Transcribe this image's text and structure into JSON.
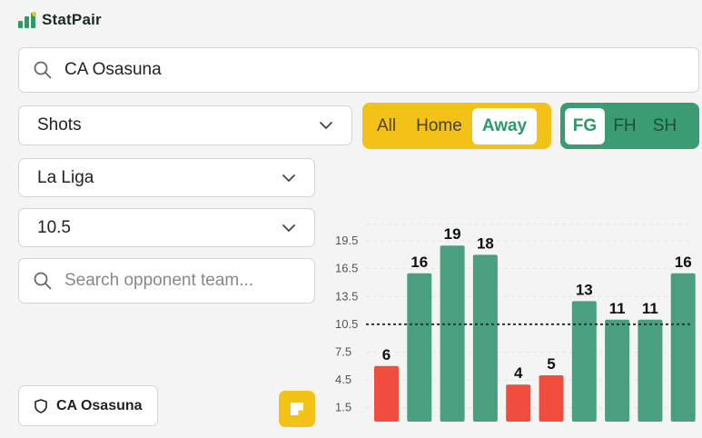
{
  "app": {
    "name": "StatPair"
  },
  "search": {
    "value": "CA Osasuna"
  },
  "filters": {
    "stat_select": "Shots",
    "league_select": "La Liga",
    "line_select": "10.5"
  },
  "venue_toggle": {
    "options": [
      "All",
      "Home",
      "Away"
    ],
    "selected": "Away"
  },
  "period_toggle": {
    "options": [
      "FG",
      "FH",
      "SH"
    ],
    "selected": "FG"
  },
  "opponent_search": {
    "placeholder": "Search opponent team..."
  },
  "team_button": {
    "label": "CA Osasuna"
  },
  "icons": {
    "search": "search-icon",
    "chevron": "chevron-down-icon",
    "shield": "shield-icon",
    "note": "sticky-note-icon"
  },
  "colors": {
    "over": "#4a9f7e",
    "under": "#f14d3f",
    "accent": "#f2c316",
    "brand": "#2e9a6a"
  },
  "chart_data": {
    "type": "bar",
    "values": [
      6,
      16,
      19,
      18,
      4,
      5,
      13,
      11,
      11,
      16
    ],
    "line": 10.5,
    "y_ticks": [
      "1.5",
      "4.5",
      "7.5",
      "10.5",
      "13.5",
      "16.5",
      "19.5"
    ],
    "ylim": [
      0,
      21.5
    ],
    "grid": true,
    "xlabel": "",
    "ylabel": ""
  }
}
